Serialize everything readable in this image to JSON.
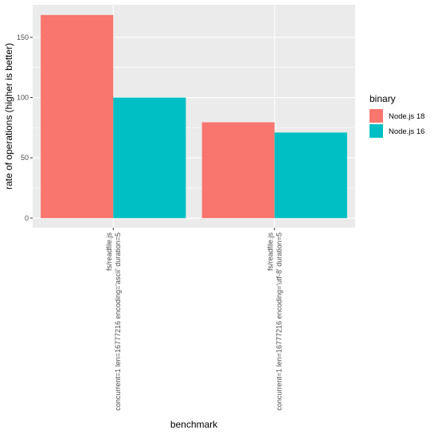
{
  "chart_data": {
    "type": "bar",
    "xlabel": "benchmark",
    "ylabel": "rate of operations (higher is better)",
    "categories": [
      [
        "fs/readfile.js",
        "concurrent=1 len=16777216 encoding='ascii' duration=5"
      ],
      [
        "fs/readfile.js",
        "concurrent=1 len=16777216 encoding='utf-8' duration=5"
      ]
    ],
    "series": [
      {
        "name": "Node.js 18",
        "color": "#F8766D",
        "values": [
          168.5,
          79.5
        ]
      },
      {
        "name": "Node.js 16",
        "color": "#00BFC4",
        "values": [
          100,
          71
        ]
      }
    ],
    "ylim": [
      -8,
      177
    ],
    "yticks": [
      0,
      50,
      100,
      150
    ],
    "legend": {
      "title": "binary",
      "position": "right"
    },
    "grid": true
  }
}
